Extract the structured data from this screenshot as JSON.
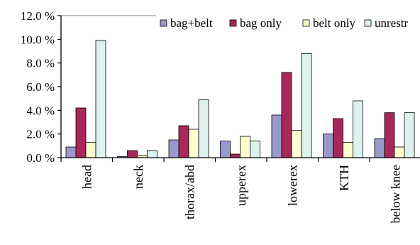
{
  "chart_data": {
    "type": "bar",
    "categories": [
      "head",
      "neck",
      "thorax/abd",
      "upperex",
      "lowerex",
      "KTH",
      "below knee"
    ],
    "series": [
      {
        "name": "bag+belt",
        "color": "#9999cc",
        "values": [
          0.9,
          0.1,
          1.5,
          1.4,
          3.6,
          2.0,
          1.6
        ]
      },
      {
        "name": "bag only",
        "color": "#a8285a",
        "values": [
          4.2,
          0.6,
          2.7,
          0.3,
          7.2,
          3.3,
          3.8
        ]
      },
      {
        "name": "belt only",
        "color": "#ffffd0",
        "values": [
          1.3,
          0.2,
          2.4,
          1.8,
          2.3,
          1.3,
          0.9
        ]
      },
      {
        "name": "unrestr",
        "color": "#ddf2ee",
        "values": [
          9.9,
          0.6,
          4.9,
          1.4,
          8.8,
          4.8,
          3.8
        ]
      }
    ],
    "yticks": [
      "0.0 %",
      "2.0 %",
      "4.0 %",
      "6.0 %",
      "8.0 %",
      "10.0 %",
      "12.0 %"
    ],
    "ylim": [
      0,
      12
    ],
    "legend_position": "top-right",
    "grid": false
  }
}
